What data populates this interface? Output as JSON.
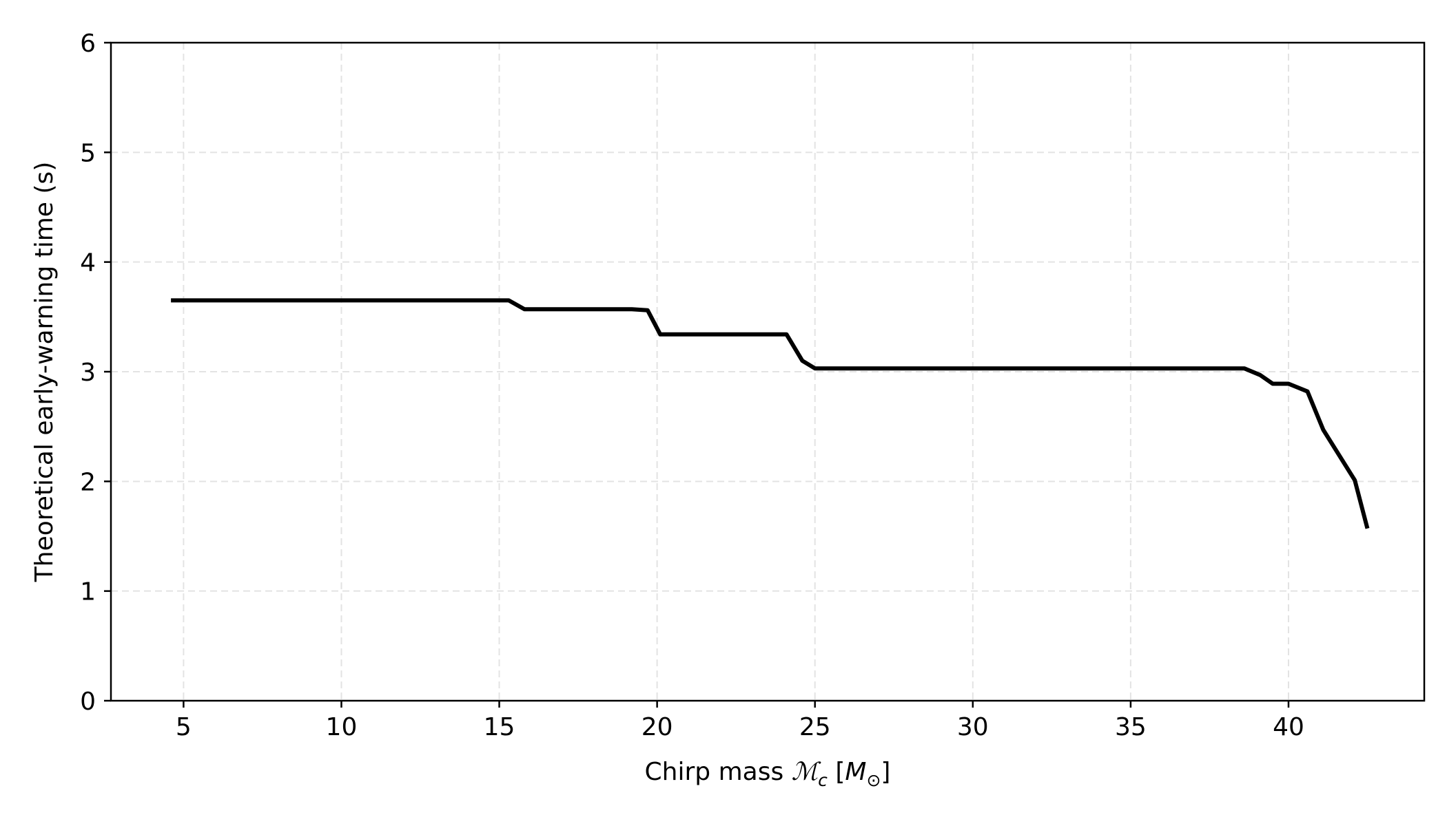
{
  "chart_data": {
    "type": "line",
    "xlabel": "Chirp mass ℳ_c [M_⊙]",
    "xlabel_parts": {
      "prefix": "Chirp mass ",
      "symbol": "ℳ",
      "subscript": "c",
      "open_bracket": " [",
      "unit": "M",
      "unit_subscript": "⊙",
      "close_bracket": "]"
    },
    "ylabel": "Theoretical early-warning time (s)",
    "xlim": [
      2.7,
      44.3
    ],
    "ylim": [
      0,
      6
    ],
    "xticks": [
      5,
      10,
      15,
      20,
      25,
      30,
      35,
      40
    ],
    "xtick_labels": [
      "5",
      "10",
      "15",
      "20",
      "25",
      "30",
      "35",
      "40"
    ],
    "yticks": [
      0,
      1,
      2,
      3,
      4,
      5,
      6
    ],
    "ytick_labels": [
      "0",
      "1",
      "2",
      "3",
      "4",
      "5",
      "6"
    ],
    "grid": true,
    "series": [
      {
        "color": "#000000",
        "x": [
          4.6,
          15.3,
          15.8,
          19.2,
          19.7,
          20.1,
          24.1,
          24.6,
          25.0,
          38.6,
          39.1,
          39.5,
          40.0,
          40.6,
          41.1,
          42.1,
          42.5
        ],
        "y": [
          3.65,
          3.65,
          3.57,
          3.57,
          3.56,
          3.34,
          3.34,
          3.1,
          3.03,
          3.03,
          2.97,
          2.89,
          2.89,
          2.82,
          2.47,
          2.01,
          1.57
        ]
      }
    ]
  }
}
